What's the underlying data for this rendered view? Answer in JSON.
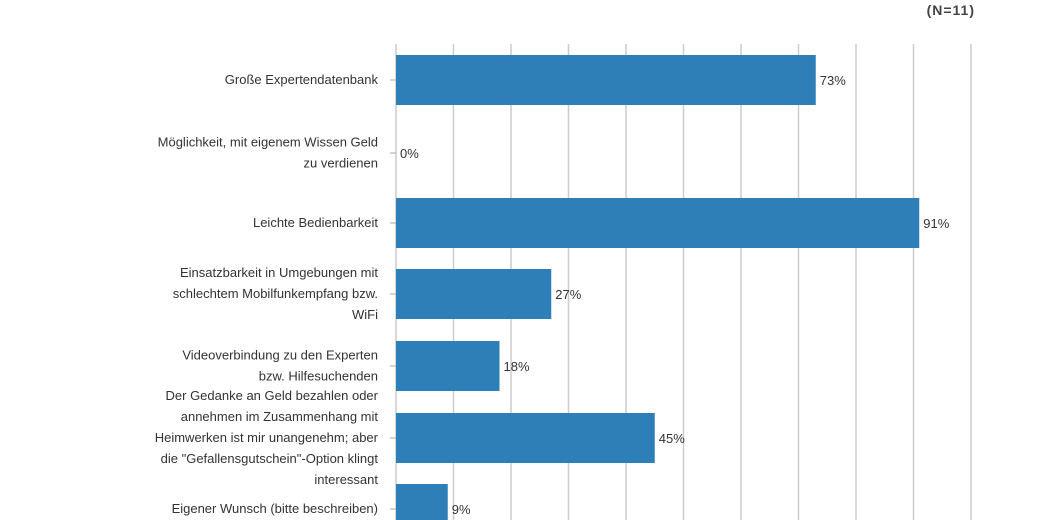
{
  "header": {
    "n_label": "(N=11)"
  },
  "chart_data": {
    "type": "bar",
    "orientation": "horizontal",
    "title": "",
    "xlabel": "",
    "ylabel": "",
    "xlim": [
      0,
      100
    ],
    "gridlines": "vertical",
    "grid_step": 10,
    "color": "#2e7fb8",
    "categories": [
      [
        "Große Expertendatenbank"
      ],
      [
        "Möglichkeit, mit eigenem Wissen Geld",
        "zu verdienen"
      ],
      [
        "Leichte Bedienbarkeit"
      ],
      [
        "Einsatzbarkeit in Umgebungen mit",
        "schlechtem Mobilfunkempfang bzw.",
        "WiFi"
      ],
      [
        "Videoverbindung zu den Experten",
        "bzw. Hilfesuchenden"
      ],
      [
        "Der Gedanke an Geld bezahlen oder",
        "annehmen im Zusammenhang mit",
        "Heimwerken ist mir unangenehm; aber",
        "die \"Gefallensgutschein\"-Option klingt",
        "interessant"
      ],
      [
        "Eigener Wunsch (bitte beschreiben)"
      ]
    ],
    "values": [
      73,
      0,
      91,
      27,
      18,
      45,
      9
    ],
    "value_labels": [
      "73%",
      "0%",
      "91%",
      "27%",
      "18%",
      "45%",
      "9%"
    ]
  }
}
